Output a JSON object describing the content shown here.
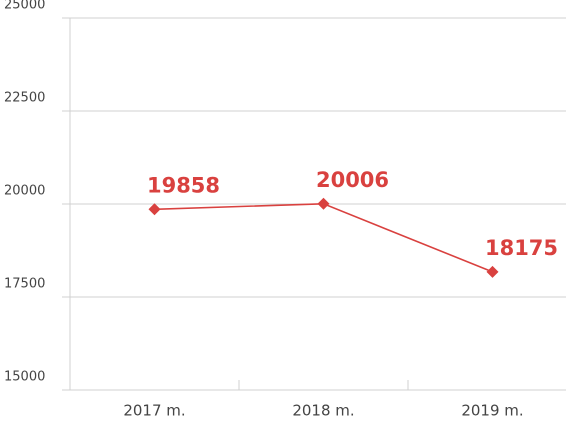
{
  "chart_data": {
    "type": "line",
    "categories": [
      "2017 m.",
      "2018 m.",
      "2019 m."
    ],
    "series": [
      {
        "name": "Series",
        "color": "#d9413f",
        "values": [
          19858,
          20006,
          18175
        ]
      }
    ],
    "ylim": [
      15000,
      25000
    ],
    "yticks": [
      15000,
      17500,
      20000,
      22500,
      25000
    ],
    "grid": true
  }
}
